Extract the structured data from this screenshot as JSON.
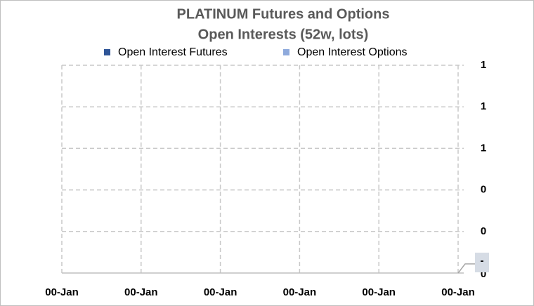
{
  "chart_data": {
    "type": "bar",
    "title": [
      "PLATINUM  Futures  and  Options",
      "Open Interests (52w, lots)"
    ],
    "categories": [
      "00-Jan",
      "00-Jan",
      "00-Jan",
      "00-Jan",
      "00-Jan",
      "00-Jan"
    ],
    "series": [
      {
        "name": "Open Interest   Futures",
        "color": "#2f5597",
        "values": [
          0,
          0,
          0,
          0,
          0,
          0
        ]
      },
      {
        "name": "Open Interest   Options",
        "color": "#8faadc",
        "values": [
          0,
          0,
          0,
          0,
          0,
          0
        ]
      }
    ],
    "ylim": [
      0,
      1
    ],
    "yticks": [
      {
        "value": 0,
        "label": "0"
      },
      {
        "value": 0.2,
        "label": "0"
      },
      {
        "value": 0.4,
        "label": "0"
      },
      {
        "value": 0.6,
        "label": "1"
      },
      {
        "value": 0.8,
        "label": "1"
      },
      {
        "value": 1,
        "label": "1"
      }
    ],
    "annotation": "-",
    "grid": true,
    "legend": "top"
  }
}
